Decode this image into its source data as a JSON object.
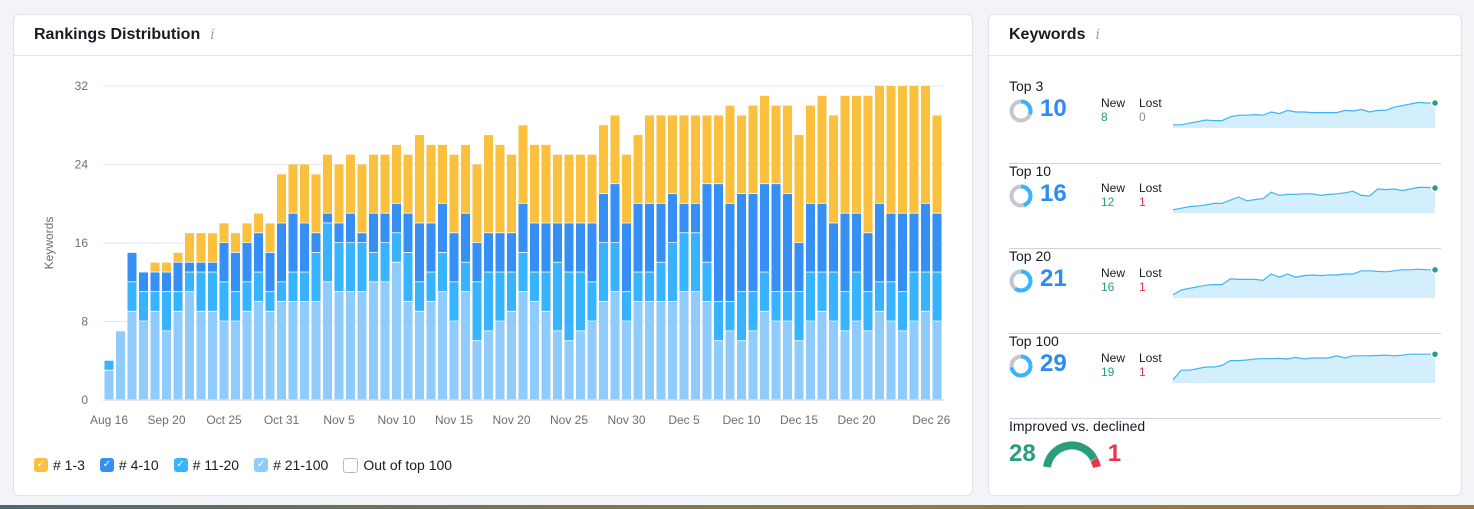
{
  "rankings": {
    "title": "Rankings Distribution",
    "info_icon": "i",
    "legend": [
      {
        "label": "# 1-3",
        "color": "#fbc03d",
        "checked": true
      },
      {
        "label": "# 4-10",
        "color": "#358ff4",
        "checked": true
      },
      {
        "label": "# 11-20",
        "color": "#38b3ff",
        "checked": true
      },
      {
        "label": "# 21-100",
        "color": "#8fcbfd",
        "checked": true
      },
      {
        "label": "Out of top 100",
        "color": "#ffffff",
        "checked": false
      }
    ]
  },
  "chart_data": {
    "type": "bar",
    "stacked": true,
    "ylabel": "Keywords",
    "ylim": [
      0,
      32
    ],
    "yticks": [
      "0",
      "8",
      "16",
      "24",
      "32"
    ],
    "grid": true,
    "x_labels": [
      {
        "label": "Aug 16",
        "index": 0
      },
      {
        "label": "Sep 20",
        "index": 5
      },
      {
        "label": "Oct 25",
        "index": 10
      },
      {
        "label": "Oct 31",
        "index": 15
      },
      {
        "label": "Nov 5",
        "index": 20
      },
      {
        "label": "Nov 10",
        "index": 25
      },
      {
        "label": "Nov 15",
        "index": 30
      },
      {
        "label": "Nov 20",
        "index": 35
      },
      {
        "label": "Nov 25",
        "index": 40
      },
      {
        "label": "Nov 30",
        "index": 45
      },
      {
        "label": "Dec 5",
        "index": 50
      },
      {
        "label": "Dec 10",
        "index": 55
      },
      {
        "label": "Dec 15",
        "index": 60
      },
      {
        "label": "Dec 20",
        "index": 65
      },
      {
        "label": "Dec 26",
        "index": 71.5
      }
    ],
    "series_order": [
      "# 21-100",
      "# 11-20",
      "# 4-10",
      "# 1-3"
    ],
    "bars": [
      [
        3,
        1,
        0,
        0
      ],
      [
        7,
        0,
        0,
        0
      ],
      [
        9,
        3,
        3,
        0
      ],
      [
        8,
        3,
        2,
        0
      ],
      [
        9,
        2,
        2,
        1
      ],
      [
        7,
        4,
        2,
        1
      ],
      [
        9,
        2,
        3,
        1
      ],
      [
        11,
        2,
        1,
        3
      ],
      [
        9,
        4,
        1,
        3
      ],
      [
        9,
        4,
        1,
        3
      ],
      [
        8,
        4,
        4,
        2
      ],
      [
        8,
        3,
        4,
        2
      ],
      [
        9,
        3,
        4,
        2
      ],
      [
        10,
        3,
        4,
        2
      ],
      [
        9,
        2,
        4,
        3
      ],
      [
        10,
        2,
        6,
        5
      ],
      [
        10,
        3,
        6,
        5
      ],
      [
        10,
        3,
        5,
        6
      ],
      [
        10,
        5,
        2,
        6
      ],
      [
        12,
        6,
        1,
        6
      ],
      [
        11,
        5,
        2,
        6
      ],
      [
        11,
        5,
        3,
        6
      ],
      [
        11,
        5,
        1,
        7
      ],
      [
        12,
        3,
        4,
        6
      ],
      [
        12,
        4,
        3,
        6
      ],
      [
        14,
        3,
        3,
        6
      ],
      [
        10,
        5,
        4,
        6
      ],
      [
        9,
        3,
        6,
        9
      ],
      [
        10,
        3,
        5,
        8
      ],
      [
        11,
        4,
        5,
        6
      ],
      [
        8,
        4,
        5,
        8
      ],
      [
        11,
        3,
        5,
        7
      ],
      [
        6,
        6,
        4,
        8
      ],
      [
        7,
        6,
        4,
        10
      ],
      [
        8,
        5,
        4,
        9
      ],
      [
        9,
        4,
        4,
        8
      ],
      [
        11,
        4,
        5,
        8
      ],
      [
        10,
        3,
        5,
        8
      ],
      [
        9,
        4,
        5,
        8
      ],
      [
        7,
        7,
        4,
        7
      ],
      [
        6,
        7,
        5,
        7
      ],
      [
        7,
        6,
        5,
        7
      ],
      [
        8,
        4,
        6,
        7
      ],
      [
        10,
        6,
        5,
        7
      ],
      [
        11,
        5,
        6,
        7
      ],
      [
        8,
        3,
        7,
        7
      ],
      [
        10,
        3,
        7,
        7
      ],
      [
        10,
        3,
        7,
        9
      ],
      [
        10,
        4,
        6,
        9
      ],
      [
        10,
        6,
        5,
        8
      ],
      [
        11,
        6,
        3,
        9
      ],
      [
        11,
        6,
        3,
        9
      ],
      [
        10,
        4,
        8,
        7
      ],
      [
        6,
        4,
        12,
        7
      ],
      [
        7,
        3,
        10,
        10
      ],
      [
        6,
        5,
        10,
        8
      ],
      [
        7,
        4,
        10,
        9
      ],
      [
        9,
        4,
        9,
        9
      ],
      [
        8,
        3,
        11,
        8
      ],
      [
        8,
        3,
        10,
        9
      ],
      [
        6,
        5,
        5,
        11
      ],
      [
        8,
        5,
        7,
        10
      ],
      [
        9,
        4,
        7,
        11
      ],
      [
        8,
        5,
        5,
        11
      ],
      [
        7,
        4,
        8,
        12
      ],
      [
        8,
        5,
        6,
        12
      ],
      [
        7,
        4,
        6,
        14
      ],
      [
        9,
        3,
        8,
        12
      ],
      [
        8,
        4,
        7,
        13
      ],
      [
        7,
        4,
        8,
        13
      ],
      [
        8,
        5,
        6,
        13
      ],
      [
        9,
        4,
        7,
        12
      ],
      [
        8,
        5,
        6,
        10
      ]
    ]
  },
  "keywords": {
    "title": "Keywords",
    "info_icon": "i",
    "new_label": "New",
    "lost_label": "Lost",
    "rows": [
      {
        "label": "Top 3",
        "value": "10",
        "new": "8",
        "lost": "0",
        "ring_fraction": 0.3,
        "spark": [
          1,
          1,
          1.5,
          2,
          2.5,
          2.3,
          2.3,
          3.5,
          4,
          4,
          4.2,
          4,
          5,
          4.5,
          5.5,
          5,
          5,
          4.8,
          4.8,
          4.8,
          4.8,
          5.5,
          5.3,
          5.8,
          5,
          5.5,
          5.5,
          6.5,
          7,
          7.5,
          8,
          7.8,
          7.8
        ]
      },
      {
        "label": "Top 10",
        "value": "16",
        "new": "12",
        "lost": "1",
        "ring_fraction": 0.45,
        "spark": [
          1,
          1.5,
          2,
          2.2,
          2.5,
          3,
          3,
          4,
          5,
          3.8,
          4.2,
          4.5,
          6.5,
          5.5,
          5.8,
          5.8,
          6,
          6,
          5.5,
          5.8,
          6,
          6.3,
          6.8,
          5.5,
          5.3,
          7.5,
          7.3,
          7.5,
          7,
          7.5,
          8,
          8,
          7.8
        ]
      },
      {
        "label": "Top 20",
        "value": "21",
        "new": "16",
        "lost": "1",
        "ring_fraction": 0.6,
        "spark": [
          1,
          2.5,
          3,
          3.5,
          4,
          4.2,
          4.2,
          6,
          5.8,
          5.8,
          5.8,
          5.5,
          7.5,
          6.5,
          7.5,
          6.5,
          7,
          7.2,
          7,
          7.2,
          7.2,
          7.5,
          7.5,
          8.5,
          8.5,
          8.3,
          8.2,
          8.5,
          8.8,
          8.8,
          9,
          8.8,
          8.8
        ]
      },
      {
        "label": "Top 100",
        "value": "29",
        "new": "19",
        "lost": "1",
        "ring_fraction": 0.72,
        "spark": [
          1,
          4,
          4,
          4.5,
          5,
          5,
          5.5,
          7,
          7,
          7.2,
          7.5,
          7.6,
          7.6,
          7.7,
          7.5,
          8,
          7.5,
          7.8,
          7.8,
          7.8,
          8.5,
          7.8,
          8.5,
          8.5,
          8.5,
          8.6,
          8.7,
          8.5,
          8.7,
          9,
          9,
          9,
          9
        ]
      }
    ],
    "improved_label": "Improved vs. declined",
    "improved": "28",
    "declined": "1",
    "colors": {
      "accent": "#2e8cf0",
      "positive": "#2a9d7c",
      "negative": "#e5364d",
      "ring_bg": "#c5c7cf",
      "spark_line": "#42b4f5",
      "spark_fill": "#d3eefc"
    }
  }
}
